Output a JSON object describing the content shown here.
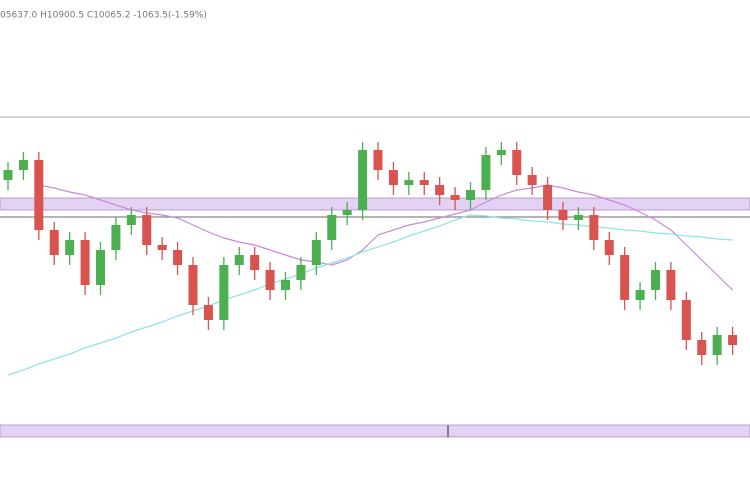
{
  "chart_data": {
    "type": "candlestick",
    "title": "05637.0 H10900.5 C10065.2 -1063.5(-1.59%)",
    "categories": [
      null,
      null,
      null,
      null,
      null,
      null,
      null,
      null,
      null,
      null,
      null,
      null,
      null,
      null,
      null,
      null,
      null,
      null,
      null,
      null,
      null,
      null,
      null,
      null,
      null,
      null,
      null,
      null,
      null,
      null,
      null,
      null,
      null,
      null,
      null,
      null,
      null,
      null,
      null,
      null,
      null,
      null,
      null,
      null,
      null,
      null,
      null,
      null
    ],
    "open": [
      270,
      280,
      290,
      220,
      195,
      210,
      165,
      200,
      225,
      235,
      205,
      200,
      185,
      145,
      130,
      185,
      195,
      180,
      160,
      170,
      185,
      210,
      235,
      240,
      300,
      280,
      265,
      270,
      265,
      255,
      250,
      260,
      295,
      300,
      275,
      265,
      240,
      230,
      235,
      210,
      195,
      150,
      160,
      180,
      150,
      110,
      95,
      115
    ],
    "high": [
      288,
      298,
      298,
      228,
      218,
      218,
      208,
      233,
      243,
      243,
      213,
      208,
      193,
      153,
      193,
      203,
      203,
      188,
      178,
      193,
      218,
      243,
      248,
      308,
      308,
      288,
      278,
      278,
      273,
      263,
      268,
      303,
      308,
      308,
      283,
      273,
      248,
      243,
      243,
      218,
      203,
      168,
      188,
      188,
      158,
      118,
      123,
      123
    ],
    "low": [
      260,
      270,
      210,
      185,
      185,
      155,
      155,
      190,
      215,
      195,
      190,
      175,
      135,
      120,
      120,
      175,
      170,
      150,
      150,
      160,
      175,
      200,
      225,
      230,
      270,
      255,
      255,
      255,
      245,
      240,
      240,
      250,
      285,
      265,
      255,
      230,
      220,
      220,
      200,
      185,
      140,
      140,
      150,
      140,
      100,
      85,
      85,
      95
    ],
    "close": [
      280,
      290,
      220,
      195,
      210,
      165,
      200,
      225,
      235,
      205,
      200,
      185,
      145,
      130,
      185,
      195,
      180,
      160,
      170,
      185,
      210,
      235,
      240,
      300,
      280,
      265,
      270,
      265,
      255,
      250,
      260,
      295,
      300,
      275,
      265,
      240,
      230,
      235,
      210,
      195,
      150,
      160,
      180,
      150,
      110,
      95,
      115,
      105
    ],
    "up_color": "#4caf50",
    "down_color": "#d9534f",
    "series": [
      {
        "color": "#cc88dd",
        "values": [
          null,
          null,
          265,
          262,
          258,
          255,
          250,
          245,
          240,
          237,
          235,
          232,
          225,
          218,
          212,
          208,
          205,
          200,
          195,
          190,
          188,
          185,
          190,
          200,
          215,
          220,
          225,
          228,
          232,
          236,
          240,
          248,
          255,
          260,
          262,
          265,
          262,
          258,
          255,
          250,
          245,
          238,
          230,
          220,
          205,
          190,
          175,
          160
        ]
      },
      {
        "color": "#8fe3ea",
        "values": [
          75,
          80,
          86,
          91,
          96,
          102,
          107,
          112,
          118,
          123,
          128,
          134,
          139,
          144,
          150,
          155,
          160,
          166,
          171,
          176,
          182,
          187,
          192,
          198,
          203,
          208,
          214,
          219,
          224,
          230,
          235,
          234,
          232,
          231,
          229,
          228,
          226,
          225,
          223,
          222,
          220,
          219,
          217,
          216,
          214,
          213,
          211,
          210
        ]
      }
    ],
    "bands": [
      {
        "from": 240,
        "to": 252,
        "color": "#e3d2f2"
      },
      {
        "from": 13,
        "to": 25,
        "color": "#e3d2f2"
      }
    ],
    "lines": [
      {
        "value": 233,
        "color": "#888888"
      },
      {
        "value": 333,
        "color": "#bbbbbb"
      }
    ],
    "ylim": [
      0,
      350
    ]
  }
}
